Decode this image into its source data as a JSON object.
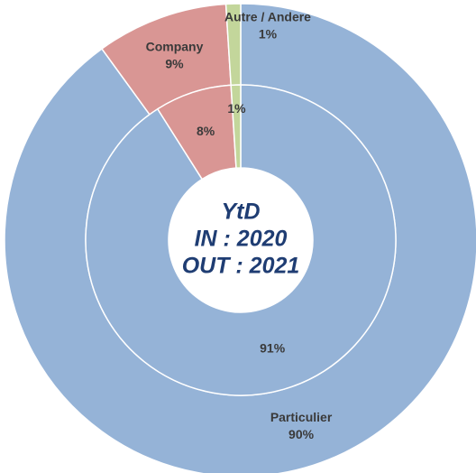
{
  "chart_data": {
    "type": "donut",
    "categories": [
      "Particulier",
      "Company",
      "Autre / Andere"
    ],
    "colors": [
      "#95b3d7",
      "#d99694",
      "#c3d69b"
    ],
    "series": [
      {
        "values": [
          90,
          9,
          1
        ],
        "value_labels": [
          "90%",
          "9%",
          "1%"
        ]
      },
      {
        "values": [
          91,
          8,
          1
        ],
        "value_labels": [
          "91%",
          "8%",
          "1%"
        ]
      }
    ],
    "center_text": [
      "YtD",
      "IN : 2020",
      "OUT : 2021"
    ]
  }
}
